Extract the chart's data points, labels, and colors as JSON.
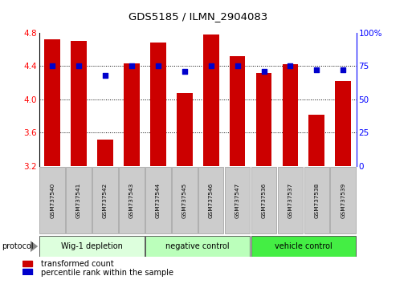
{
  "title": "GDS5185 / ILMN_2904083",
  "samples": [
    "GSM737540",
    "GSM737541",
    "GSM737542",
    "GSM737543",
    "GSM737544",
    "GSM737545",
    "GSM737546",
    "GSM737547",
    "GSM737536",
    "GSM737537",
    "GSM737538",
    "GSM737539"
  ],
  "bar_values": [
    4.72,
    4.7,
    3.52,
    4.43,
    4.68,
    4.08,
    4.78,
    4.52,
    4.32,
    4.42,
    3.82,
    4.22
  ],
  "percentile_values": [
    75,
    75,
    68,
    75,
    75,
    71,
    75,
    75,
    71,
    75,
    72,
    72
  ],
  "y_min": 3.2,
  "y_max": 4.8,
  "y_ticks_left": [
    3.2,
    3.6,
    4.0,
    4.4,
    4.8
  ],
  "y_ticks_right": [
    0,
    25,
    50,
    75,
    100
  ],
  "bar_color": "#cc0000",
  "dot_color": "#0000cc",
  "groups": [
    {
      "label": "Wig-1 depletion",
      "indices": [
        0,
        1,
        2,
        3
      ],
      "color": "#ddffdd"
    },
    {
      "label": "negative control",
      "indices": [
        4,
        5,
        6,
        7
      ],
      "color": "#bbffbb"
    },
    {
      "label": "vehicle control",
      "indices": [
        8,
        9,
        10,
        11
      ],
      "color": "#44ee44"
    }
  ],
  "sample_box_color": "#cccccc",
  "protocol_label": "protocol",
  "legend_red_label": "transformed count",
  "legend_blue_label": "percentile rank within the sample"
}
